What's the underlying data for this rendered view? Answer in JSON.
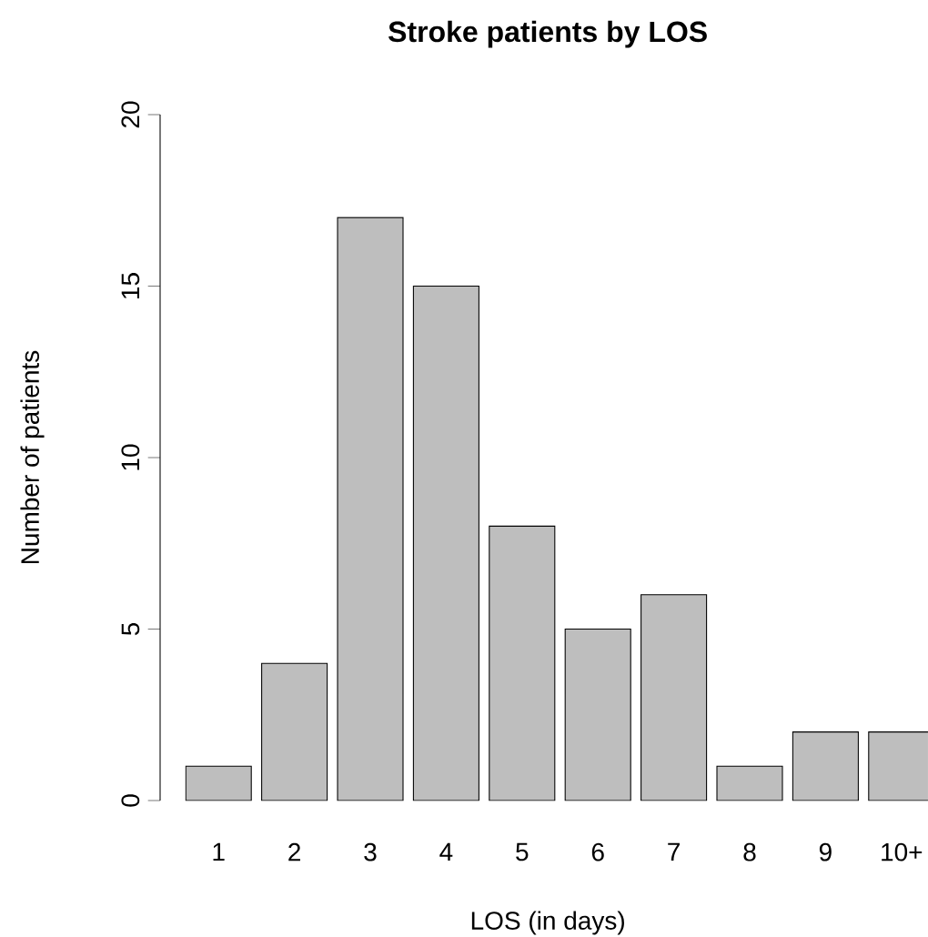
{
  "chart_data": {
    "type": "bar",
    "title": "Stroke patients by LOS",
    "xlabel": "LOS (in days)",
    "ylabel": "Number of patients",
    "categories": [
      "1",
      "2",
      "3",
      "4",
      "5",
      "6",
      "7",
      "8",
      "9",
      "10+"
    ],
    "values": [
      1,
      4,
      17,
      15,
      8,
      5,
      6,
      1,
      2,
      2
    ],
    "color": "#bebebe",
    "ylim": [
      0,
      20
    ],
    "yticks": [
      0,
      5,
      10,
      15,
      20
    ]
  }
}
